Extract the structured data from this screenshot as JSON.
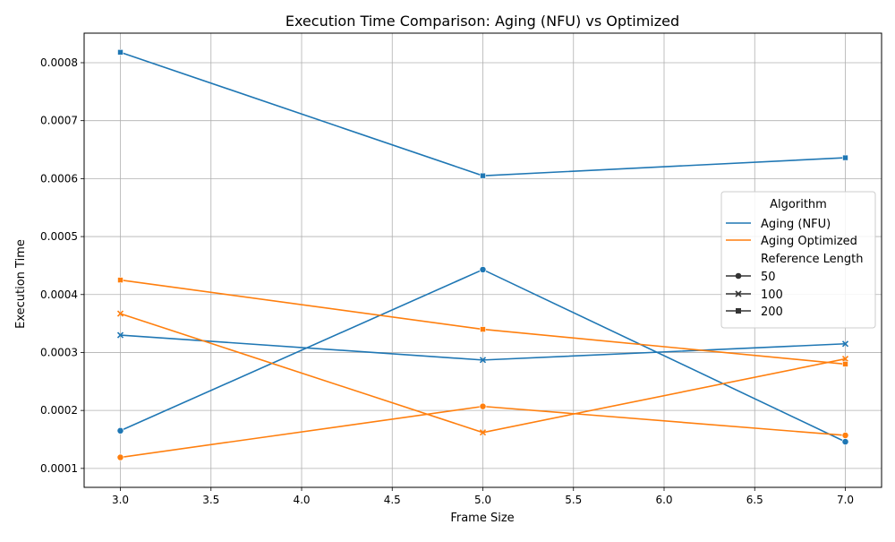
{
  "chart_data": {
    "type": "line",
    "title": "Execution Time Comparison: Aging (NFU) vs Optimized",
    "xlabel": "Frame Size",
    "ylabel": "Execution Time",
    "xlim": [
      2.8,
      7.2
    ],
    "ylim": [
      6.73e-05,
      0.000851
    ],
    "x_ticks": [
      "3.0",
      "3.5",
      "4.0",
      "4.5",
      "5.0",
      "5.5",
      "6.0",
      "6.5",
      "7.0"
    ],
    "x_tick_values": [
      3.0,
      3.5,
      4.0,
      4.5,
      5.0,
      5.5,
      6.0,
      6.5,
      7.0
    ],
    "y_ticks": [
      "0.0001",
      "0.0002",
      "0.0003",
      "0.0004",
      "0.0005",
      "0.0006",
      "0.0007",
      "0.0008"
    ],
    "y_tick_values": [
      0.0001,
      0.0002,
      0.0003,
      0.0004,
      0.0005,
      0.0006,
      0.0007,
      0.0008
    ],
    "grid": true,
    "legend": {
      "placement": "center-right",
      "hue_title": "Algorithm",
      "hue_entries": [
        {
          "label": "Aging (NFU)",
          "color": "#1f77b4"
        },
        {
          "label": "Aging Optimized",
          "color": "#ff7f0e"
        }
      ],
      "style_title": "Reference Length",
      "style_entries": [
        {
          "label": "50",
          "marker": "circle"
        },
        {
          "label": "100",
          "marker": "x"
        },
        {
          "label": "200",
          "marker": "square"
        }
      ]
    },
    "series": [
      {
        "algorithm": "Aging (NFU)",
        "reference_length": "50",
        "color": "#1f77b4",
        "marker": "circle",
        "x": [
          3,
          5,
          7
        ],
        "y": [
          0.000165,
          0.000443,
          0.000146
        ]
      },
      {
        "algorithm": "Aging (NFU)",
        "reference_length": "100",
        "color": "#1f77b4",
        "marker": "x",
        "x": [
          3,
          5,
          7
        ],
        "y": [
          0.00033,
          0.000287,
          0.000315
        ]
      },
      {
        "algorithm": "Aging (NFU)",
        "reference_length": "200",
        "color": "#1f77b4",
        "marker": "square",
        "x": [
          3,
          5,
          7
        ],
        "y": [
          0.000818,
          0.000605,
          0.000636
        ]
      },
      {
        "algorithm": "Aging Optimized",
        "reference_length": "50",
        "color": "#ff7f0e",
        "marker": "circle",
        "x": [
          3,
          5,
          7
        ],
        "y": [
          0.000119,
          0.000207,
          0.000157
        ]
      },
      {
        "algorithm": "Aging Optimized",
        "reference_length": "100",
        "color": "#ff7f0e",
        "marker": "x",
        "x": [
          3,
          5,
          7
        ],
        "y": [
          0.000367,
          0.000162,
          0.000289
        ]
      },
      {
        "algorithm": "Aging Optimized",
        "reference_length": "200",
        "color": "#ff7f0e",
        "marker": "square",
        "x": [
          3,
          5,
          7
        ],
        "y": [
          0.000425,
          0.00034,
          0.00028
        ]
      }
    ]
  }
}
